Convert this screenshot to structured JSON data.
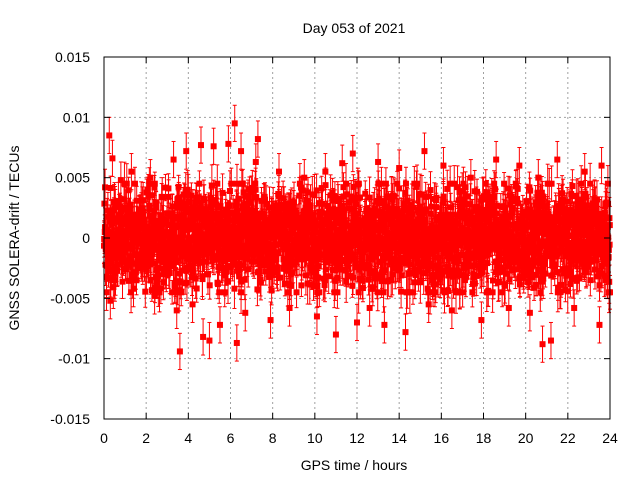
{
  "chart_data": {
    "type": "scatter",
    "title": "Day 053 of 2021",
    "xlabel": "GPS time / hours",
    "ylabel": "GNSS SOLERA-drift / TECUs",
    "xlim": [
      0,
      24
    ],
    "ylim": [
      -0.015,
      0.015
    ],
    "x_ticks": [
      0,
      2,
      4,
      6,
      8,
      10,
      12,
      14,
      16,
      18,
      20,
      22,
      24
    ],
    "x_tick_labels": [
      "0",
      "2",
      "4",
      "6",
      "8",
      "10",
      "12",
      "14",
      "16",
      "18",
      "20",
      "22",
      "24"
    ],
    "y_ticks": [
      -0.015,
      -0.01,
      -0.005,
      0,
      0.005,
      0.01,
      0.015
    ],
    "y_tick_labels": [
      "-0.015",
      "-0.01",
      "-0.005",
      "0",
      "0.005",
      "0.01",
      "0.015"
    ],
    "grid": true,
    "color": "#ff0000",
    "series": [
      {
        "marker": "square",
        "error_bars": true,
        "typical_error": 0.0015,
        "points": [
          [
            0.05,
            0.0042
          ],
          [
            0.12,
            -0.0045
          ],
          [
            0.25,
            0.0085
          ],
          [
            0.3,
            -0.0052
          ],
          [
            0.4,
            0.0066
          ],
          [
            0.5,
            -0.0035
          ],
          [
            0.8,
            0.0048
          ],
          [
            1.3,
            0.0055
          ],
          [
            1.4,
            -0.0042
          ],
          [
            2.2,
            0.005
          ],
          [
            2.4,
            -0.0048
          ],
          [
            3.3,
            0.0065
          ],
          [
            3.45,
            -0.006
          ],
          [
            3.6,
            -0.0094
          ],
          [
            3.9,
            0.0072
          ],
          [
            4.2,
            -0.0055
          ],
          [
            4.6,
            0.0077
          ],
          [
            4.7,
            -0.0082
          ],
          [
            5.0,
            -0.0085
          ],
          [
            5.2,
            0.0076
          ],
          [
            5.5,
            -0.0072
          ],
          [
            5.9,
            0.0078
          ],
          [
            6.2,
            0.0095
          ],
          [
            6.3,
            -0.0087
          ],
          [
            6.5,
            0.0072
          ],
          [
            6.7,
            -0.0062
          ],
          [
            7.2,
            0.0063
          ],
          [
            7.3,
            0.0082
          ],
          [
            7.9,
            -0.0068
          ],
          [
            8.3,
            0.0055
          ],
          [
            8.8,
            -0.0058
          ],
          [
            9.5,
            0.005
          ],
          [
            10.1,
            -0.0065
          ],
          [
            10.5,
            0.0055
          ],
          [
            11.0,
            -0.008
          ],
          [
            11.3,
            0.0062
          ],
          [
            11.8,
            0.007
          ],
          [
            12.0,
            -0.007
          ],
          [
            12.6,
            -0.0058
          ],
          [
            13.0,
            0.0063
          ],
          [
            13.3,
            -0.0072
          ],
          [
            14.0,
            0.0058
          ],
          [
            14.3,
            -0.0078
          ],
          [
            15.2,
            0.0072
          ],
          [
            15.4,
            -0.0055
          ],
          [
            16.1,
            0.006
          ],
          [
            16.5,
            -0.006
          ],
          [
            17.4,
            0.005
          ],
          [
            17.9,
            -0.0068
          ],
          [
            18.6,
            0.0065
          ],
          [
            19.2,
            -0.0058
          ],
          [
            19.7,
            0.006
          ],
          [
            20.2,
            -0.0062
          ],
          [
            20.6,
            0.005
          ],
          [
            20.8,
            -0.0088
          ],
          [
            21.2,
            -0.0085
          ],
          [
            21.5,
            0.0065
          ],
          [
            22.3,
            -0.0058
          ],
          [
            22.8,
            0.0055
          ],
          [
            23.5,
            -0.0072
          ],
          [
            23.6,
            0.006
          ],
          [
            23.9,
            0.0045
          ]
        ],
        "bulk_spread": 0.0045,
        "bulk_count": 2600
      }
    ]
  }
}
